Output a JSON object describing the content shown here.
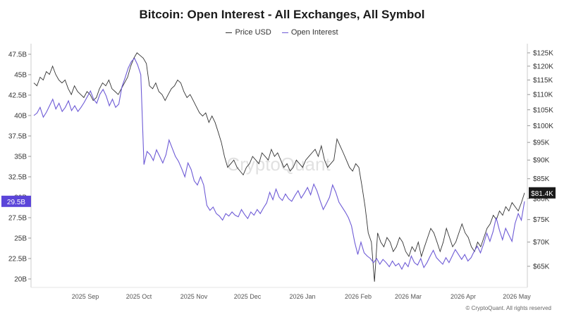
{
  "chart_data": {
    "type": "line",
    "title": "Bitcoin: Open Interest - All Exchanges, All Symbol",
    "legend_position": "top-center",
    "grid": false,
    "x_ticks": [
      "2025 Sep",
      "2025 Oct",
      "2025 Nov",
      "2025 Dec",
      "2026 Jan",
      "2026 Feb",
      "2026 Mar",
      "2026 Apr",
      "2026 May"
    ],
    "left_axis": {
      "ticks": [
        "47.5B",
        "45B",
        "42.5B",
        "40B",
        "37.5B",
        "35B",
        "32.5B",
        "30B",
        "27.5B",
        "25B",
        "22.5B",
        "20B"
      ],
      "tick_values": [
        47.5,
        45,
        42.5,
        40,
        37.5,
        35,
        32.5,
        30,
        27.5,
        25,
        22.5,
        20
      ],
      "range": [
        20,
        47.5
      ],
      "current_label": "29.5B",
      "current_value": 29.5
    },
    "right_axis": {
      "ticks": [
        "$125K",
        "$120K",
        "$115K",
        "$110K",
        "$105K",
        "$100K",
        "$95K",
        "$90K",
        "$85K",
        "$80K",
        "$75K",
        "$70K",
        "$65K"
      ],
      "tick_values": [
        125,
        120,
        115,
        110,
        105,
        100,
        95,
        90,
        85,
        80,
        75,
        70,
        65
      ],
      "log_scale": true,
      "current_label": "$81.4K",
      "current_value": 81.4
    },
    "series": [
      {
        "name": "Price USD",
        "color": "#333333",
        "axis": "right",
        "values": [
          114,
          113,
          116,
          115,
          118,
          117,
          120,
          117,
          115,
          114,
          115,
          112,
          110,
          113,
          111,
          110,
          109,
          111,
          110,
          108,
          109,
          112,
          114,
          113,
          115,
          112,
          111,
          110,
          112,
          114,
          116,
          120,
          123,
          125,
          124,
          123,
          121,
          113,
          112,
          114,
          111,
          110,
          108,
          110,
          112,
          113,
          115,
          114,
          111,
          109,
          110,
          108,
          106,
          104,
          103,
          104,
          101,
          103,
          101,
          98,
          95,
          91,
          88,
          89,
          90,
          88,
          87,
          86,
          88,
          89,
          91,
          90,
          89,
          92,
          91,
          90,
          93,
          91,
          92,
          90,
          88,
          89,
          87,
          88,
          90,
          89,
          88,
          90,
          91,
          92,
          93,
          91,
          94,
          90,
          88,
          89,
          90,
          96,
          94,
          92,
          90,
          88,
          87,
          89,
          88,
          83,
          78,
          72,
          70,
          62,
          72,
          70,
          69,
          71,
          70,
          68,
          69,
          71,
          70,
          68,
          67,
          69,
          68,
          70,
          67,
          69,
          71,
          73,
          72,
          70,
          68,
          70,
          73,
          71,
          69,
          70,
          72,
          74,
          72,
          71,
          69,
          68,
          70,
          69,
          71,
          73,
          74,
          76,
          75,
          77,
          76,
          78,
          77,
          79,
          78,
          77,
          79,
          81.4
        ]
      },
      {
        "name": "Open Interest",
        "color": "#6e5bd6",
        "axis": "left",
        "values": [
          40.0,
          40.3,
          41.0,
          39.8,
          40.4,
          41.2,
          42.0,
          40.8,
          41.5,
          40.5,
          41.0,
          41.8,
          40.6,
          41.2,
          40.5,
          41.0,
          41.6,
          42.3,
          43.0,
          42.0,
          41.5,
          42.6,
          43.2,
          42.4,
          41.2,
          42.0,
          41.0,
          41.4,
          43.5,
          44.6,
          45.8,
          46.6,
          47.0,
          46.2,
          45.0,
          34.0,
          35.6,
          35.2,
          34.5,
          35.8,
          35.0,
          34.2,
          35.2,
          37.0,
          36.0,
          35.0,
          34.4,
          33.5,
          32.5,
          34.2,
          33.4,
          32.0,
          31.5,
          32.5,
          31.5,
          29.0,
          28.4,
          28.8,
          28.0,
          27.7,
          27.2,
          28.0,
          27.7,
          28.2,
          27.8,
          27.6,
          28.5,
          27.9,
          27.4,
          28.2,
          27.8,
          28.5,
          28.0,
          28.7,
          29.3,
          30.6,
          29.7,
          31.0,
          30.0,
          29.6,
          30.4,
          29.8,
          29.5,
          30.2,
          30.8,
          29.9,
          30.5,
          31.2,
          30.3,
          31.6,
          30.8,
          29.6,
          28.5,
          29.2,
          30.0,
          31.5,
          30.6,
          29.4,
          28.8,
          28.2,
          27.5,
          26.5,
          24.5,
          23.0,
          24.5,
          23.2,
          22.8,
          22.5,
          22.0,
          22.5,
          21.8,
          22.4,
          22.0,
          21.5,
          22.2,
          21.6,
          21.9,
          21.2,
          22.0,
          21.5,
          22.8,
          22.0,
          21.7,
          22.5,
          21.4,
          22.0,
          22.8,
          23.5,
          22.6,
          22.2,
          21.8,
          22.6,
          22.0,
          22.8,
          23.6,
          23.0,
          22.4,
          23.0,
          22.2,
          22.6,
          23.4,
          24.0,
          23.2,
          24.3,
          25.6,
          24.6,
          25.8,
          27.5,
          26.0,
          24.8,
          26.2,
          25.4,
          24.6,
          26.8,
          28.0,
          27.2,
          29.5
        ]
      }
    ]
  },
  "watermark": "CryptoQuant",
  "copyright": "© CryptoQuant. All rights reserved"
}
